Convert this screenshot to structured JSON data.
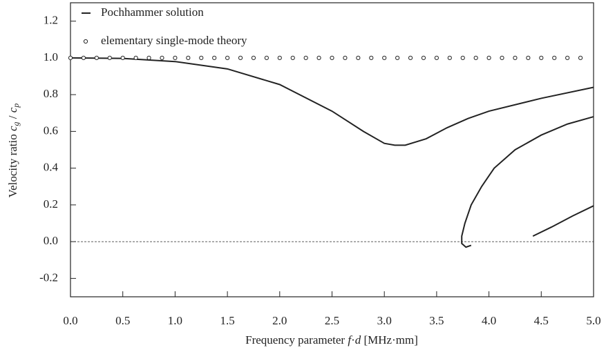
{
  "chart_data": {
    "type": "line",
    "x_label": [
      "Frequency parameter ",
      "f",
      "·",
      "d",
      " [MHz·mm]"
    ],
    "y_label": [
      "Velocity ratio ",
      "c",
      "g",
      " / ",
      "c",
      "p"
    ],
    "xlim": [
      0,
      5
    ],
    "ylim": [
      -0.3,
      1.3
    ],
    "xticks": [
      {
        "value": 0,
        "label": "0.0"
      },
      0.5,
      {
        "value": 1,
        "label": "1.0"
      },
      1.5,
      {
        "value": 2,
        "label": "2.0"
      },
      2.5,
      {
        "value": 3,
        "label": "3.0"
      },
      3.5,
      {
        "value": 4,
        "label": "4.0"
      },
      4.5,
      {
        "value": 5,
        "label": "5.0"
      }
    ],
    "yticks": [
      {
        "value": -0.2,
        "label": "-0.2"
      },
      {
        "value": 0,
        "label": "0.0"
      },
      0.2,
      0.4,
      0.6,
      0.8,
      {
        "value": 1,
        "label": "1.0"
      },
      1.2
    ],
    "hline": 0,
    "legend": "top-left",
    "series": [
      {
        "name": "Pochhammer solution",
        "color": "#222222",
        "style": "line",
        "x": [
          0,
          0.5,
          1.0,
          1.5,
          2.0,
          2.5,
          2.8,
          3.0,
          3.1,
          3.2,
          3.4,
          3.6,
          3.8,
          4.0,
          4.5,
          5.0,
          null,
          3.83,
          3.78,
          3.74,
          3.74,
          3.77,
          3.83,
          3.93,
          4.05,
          4.25,
          4.5,
          4.75,
          5.0,
          null,
          4.42,
          4.6,
          4.8,
          5.0
        ],
        "values": [
          1.0,
          0.997,
          0.98,
          0.94,
          0.855,
          0.71,
          0.6,
          0.535,
          0.525,
          0.525,
          0.56,
          0.62,
          0.67,
          0.71,
          0.78,
          0.84,
          null,
          -0.02,
          -0.03,
          -0.01,
          0.03,
          0.1,
          0.2,
          0.3,
          0.4,
          0.5,
          0.58,
          0.64,
          0.68,
          null,
          0.03,
          0.08,
          0.14,
          0.195
        ]
      },
      {
        "name": "elementary single-mode theory",
        "color": "#222222",
        "style": "markers",
        "x": [
          0,
          0.125,
          0.25,
          0.375,
          0.5,
          0.625,
          0.75,
          0.875,
          1,
          1.125,
          1.25,
          1.375,
          1.5,
          1.625,
          1.75,
          1.875,
          2,
          2.125,
          2.25,
          2.375,
          2.5,
          2.625,
          2.75,
          2.875,
          3,
          3.125,
          3.25,
          3.375,
          3.5,
          3.625,
          3.75,
          3.875,
          4,
          4.125,
          4.25,
          4.375,
          4.5,
          4.625,
          4.75,
          4.875
        ],
        "values": [
          1,
          1,
          1,
          1,
          1,
          1,
          1,
          1,
          1,
          1,
          1,
          1,
          1,
          1,
          1,
          1,
          1,
          1,
          1,
          1,
          1,
          1,
          1,
          1,
          1,
          1,
          1,
          1,
          1,
          1,
          1,
          1,
          1,
          1,
          1,
          1,
          1,
          1,
          1,
          1
        ]
      }
    ]
  }
}
